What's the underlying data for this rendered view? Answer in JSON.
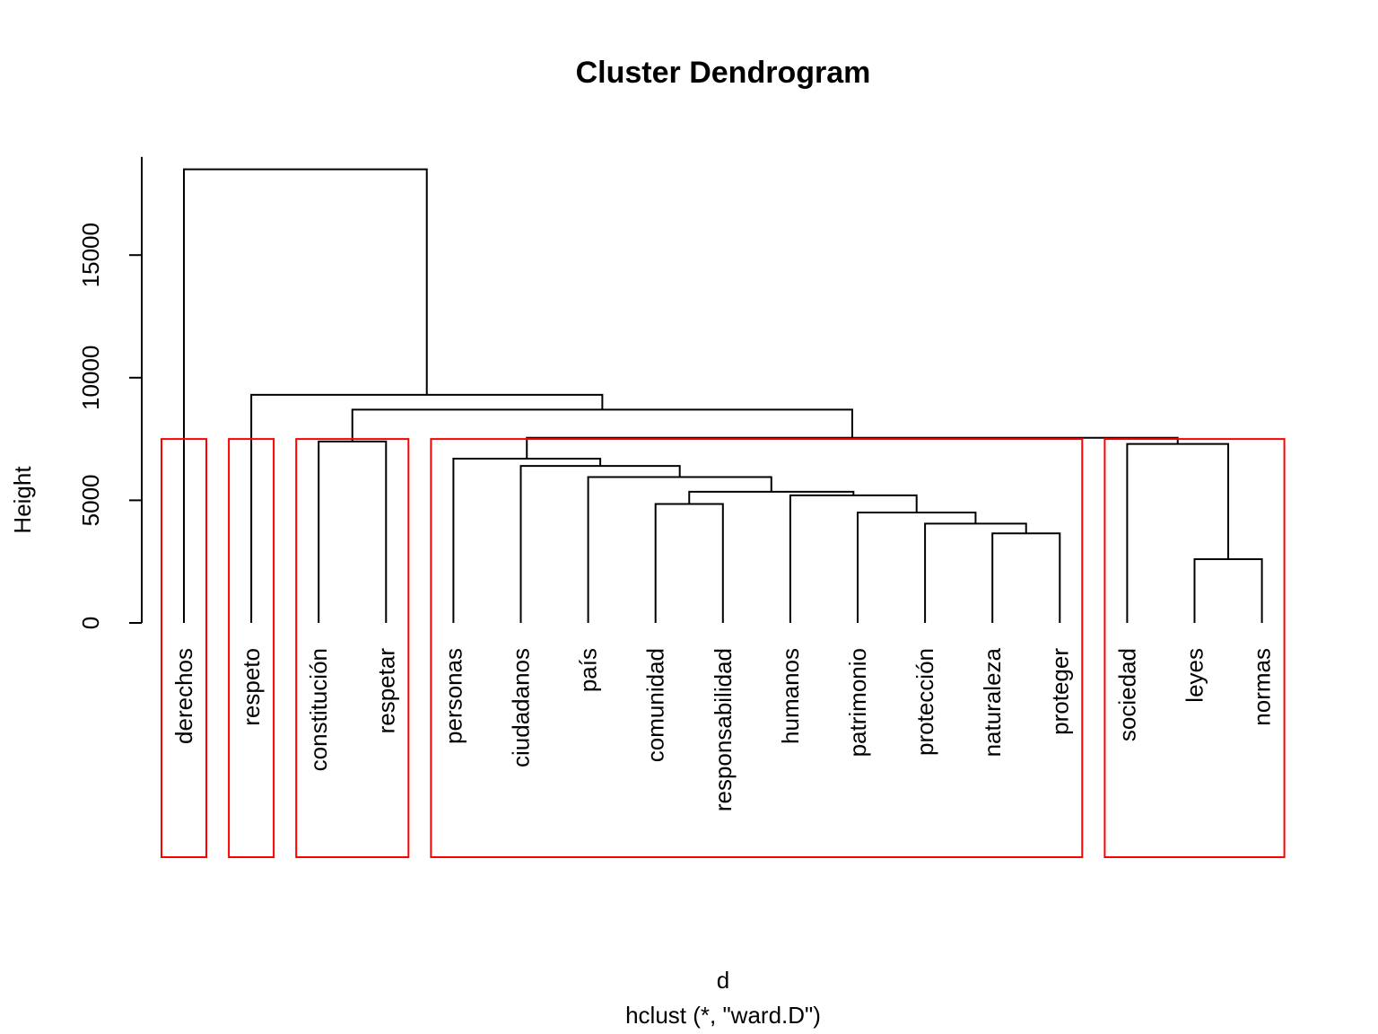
{
  "chart_data": {
    "type": "dendrogram",
    "title": "Cluster Dendrogram",
    "xlabel": "d",
    "sub": "hclust (*, \"ward.D\")",
    "ylabel": "Height",
    "ylim": [
      0,
      19000
    ],
    "y_ticks": [
      0,
      5000,
      10000,
      15000
    ],
    "leaves": [
      "derechos",
      "respeto",
      "constitución",
      "respetar",
      "personas",
      "ciudadanos",
      "país",
      "comunidad",
      "responsabilidad",
      "humanos",
      "patrimonio",
      "protección",
      "naturaleza",
      "proteger",
      "sociedad",
      "leyes",
      "normas"
    ],
    "merges": [
      {
        "id": "m1",
        "left": "leyes",
        "right": "normas",
        "height": 2600
      },
      {
        "id": "m2",
        "left": "naturaleza",
        "right": "proteger",
        "height": 3650
      },
      {
        "id": "m3",
        "left": "protección",
        "right": "m2",
        "height": 4050
      },
      {
        "id": "m4",
        "left": "patrimonio",
        "right": "m3",
        "height": 4500
      },
      {
        "id": "m5",
        "left": "comunidad",
        "right": "responsabilidad",
        "height": 4850
      },
      {
        "id": "m6",
        "left": "humanos",
        "right": "m4",
        "height": 5200
      },
      {
        "id": "m7",
        "left": "m5",
        "right": "m6",
        "height": 5350
      },
      {
        "id": "m8",
        "left": "país",
        "right": "m7",
        "height": 5950
      },
      {
        "id": "m9",
        "left": "ciudadanos",
        "right": "m8",
        "height": 6400
      },
      {
        "id": "m10",
        "left": "personas",
        "right": "m9",
        "height": 6700
      },
      {
        "id": "m11",
        "left": "sociedad",
        "right": "m1",
        "height": 7300
      },
      {
        "id": "m12",
        "left": "constitución",
        "right": "respetar",
        "height": 7400
      },
      {
        "id": "m13",
        "left": "m10",
        "right": "m11",
        "height": 7550
      },
      {
        "id": "m14",
        "left": "m12",
        "right": "m13",
        "height": 8700
      },
      {
        "id": "m15",
        "left": "respeto",
        "right": "m14",
        "height": 9300
      },
      {
        "id": "m16",
        "left": "derechos",
        "right": "m15",
        "height": 18500
      }
    ],
    "cluster_boxes": [
      {
        "from": "derechos",
        "to": "derechos"
      },
      {
        "from": "respeto",
        "to": "respeto"
      },
      {
        "from": "constitución",
        "to": "respetar"
      },
      {
        "from": "personas",
        "to": "proteger"
      },
      {
        "from": "sociedad",
        "to": "normas"
      }
    ],
    "box_color": "#ff0000",
    "line_color": "#000000"
  }
}
